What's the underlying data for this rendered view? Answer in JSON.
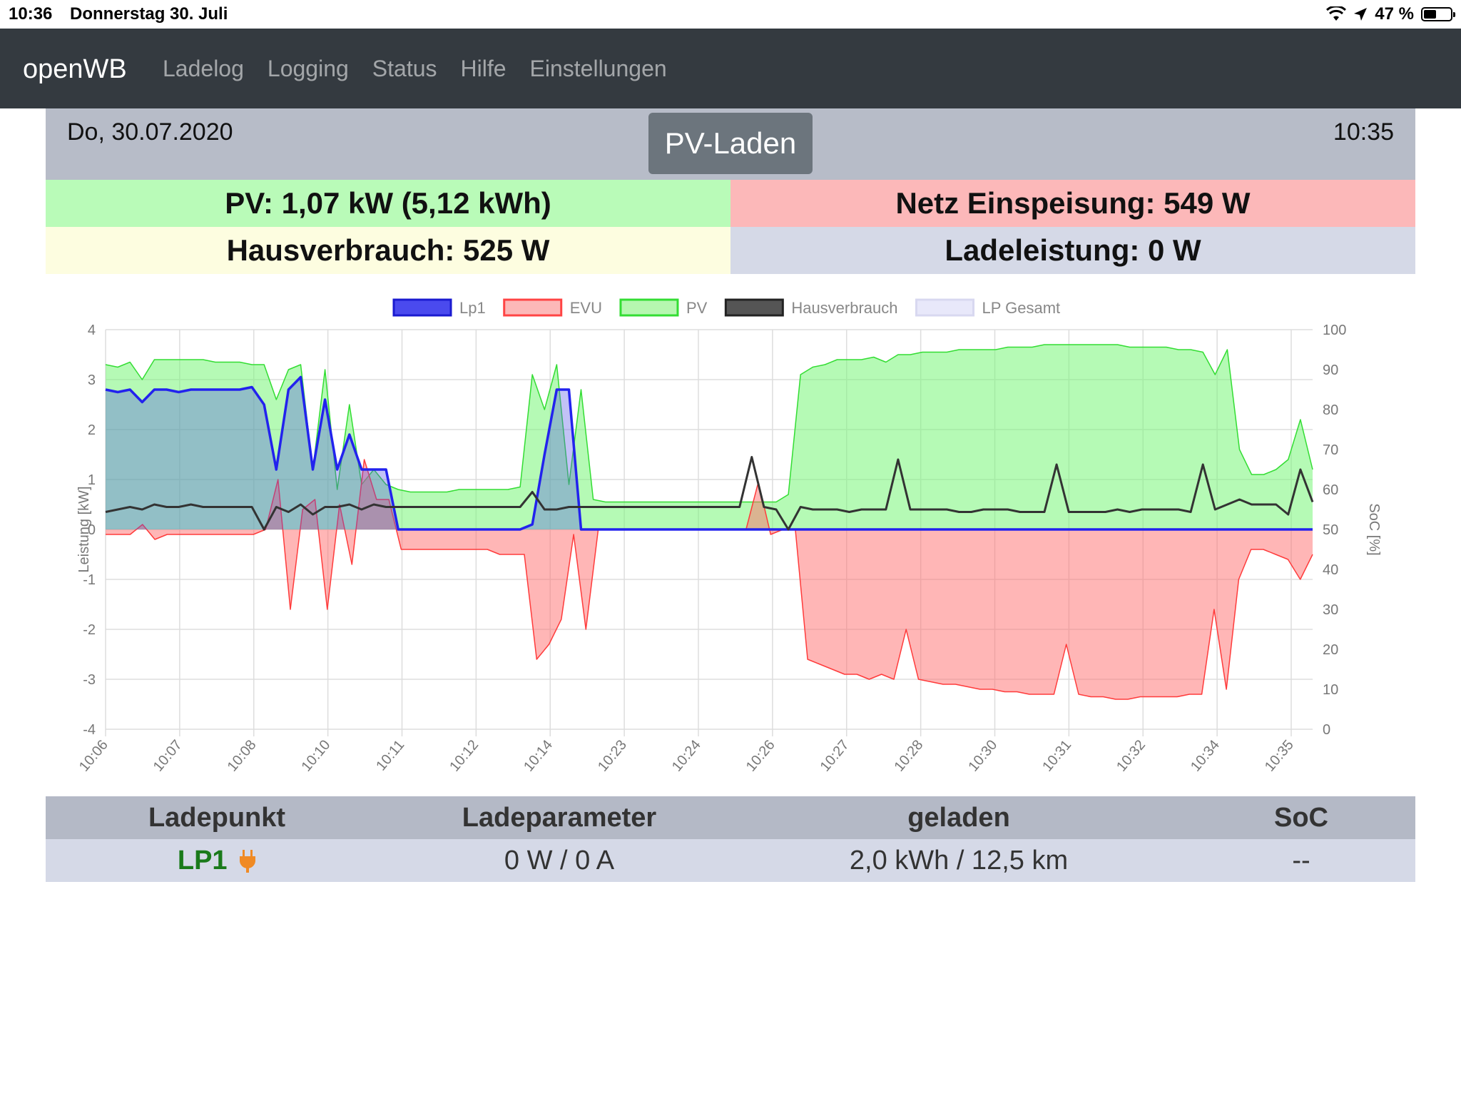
{
  "status_bar": {
    "time": "10:36",
    "date": "Donnerstag 30. Juli",
    "battery": "47 %",
    "battery_level": 0.47,
    "icons": [
      "wifi-icon",
      "location-arrow-icon",
      "battery-icon"
    ]
  },
  "navbar": {
    "brand": "openWB",
    "links": [
      "Ladelog",
      "Logging",
      "Status",
      "Hilfe",
      "Einstellungen"
    ]
  },
  "header": {
    "date": "Do, 30.07.2020",
    "time": "10:35",
    "mode_button": "PV-Laden"
  },
  "summary": {
    "pv": "PV: 1,07 kW (5,12 kWh)",
    "netz": "Netz Einspeisung: 549 W",
    "haus": "Hausverbrauch: 525 W",
    "lade": "Ladeleistung: 0 W"
  },
  "chart_data": {
    "type": "line",
    "legend": [
      {
        "name": "Lp1",
        "color": "#2222ee"
      },
      {
        "name": "EVU",
        "color": "#ff3b3b"
      },
      {
        "name": "PV",
        "color": "#33dd33"
      },
      {
        "name": "Hausverbrauch",
        "color": "#333333"
      },
      {
        "name": "LP Gesamt",
        "color": "#d8d8f8"
      }
    ],
    "legend_position": "top",
    "ylabel_left": "Leistung [kW]",
    "ylabel_right": "SoC [%]",
    "ylim_left": [
      -4,
      4
    ],
    "ylim_right": [
      0,
      100
    ],
    "yticks_left": [
      "4",
      "3",
      "2",
      "1",
      "0",
      "-1",
      "-2",
      "-3",
      "-4"
    ],
    "yticks_right": [
      "100",
      "90",
      "80",
      "70",
      "60",
      "50",
      "40",
      "30",
      "20",
      "10",
      "0"
    ],
    "xticks": [
      "10:06",
      "10:07",
      "10:08",
      "10:10",
      "10:11",
      "10:12",
      "10:14",
      "10:23",
      "10:24",
      "10:26",
      "10:27",
      "10:28",
      "10:30",
      "10:31",
      "10:32",
      "10:34",
      "10:35"
    ],
    "grid": true,
    "series": [
      {
        "name": "PV",
        "values": [
          3.3,
          3.25,
          3.35,
          3.0,
          3.4,
          3.4,
          3.4,
          3.4,
          3.4,
          3.35,
          3.35,
          3.35,
          3.3,
          3.3,
          2.6,
          3.2,
          3.3,
          1.2,
          3.2,
          0.8,
          2.5,
          0.9,
          1.2,
          0.9,
          0.8,
          0.75,
          0.75,
          0.75,
          0.75,
          0.8,
          0.8,
          0.8,
          0.8,
          0.8,
          0.85,
          3.1,
          2.4,
          3.3,
          0.9,
          2.8,
          0.6,
          0.55,
          0.55,
          0.55,
          0.55,
          0.55,
          0.55,
          0.55,
          0.55,
          0.55,
          0.55,
          0.55,
          0.55,
          0.55,
          0.55,
          0.55,
          0.7,
          3.1,
          3.25,
          3.3,
          3.4,
          3.4,
          3.4,
          3.45,
          3.35,
          3.5,
          3.5,
          3.55,
          3.55,
          3.55,
          3.6,
          3.6,
          3.6,
          3.6,
          3.65,
          3.65,
          3.65,
          3.7,
          3.7,
          3.7,
          3.7,
          3.7,
          3.7,
          3.7,
          3.65,
          3.65,
          3.65,
          3.65,
          3.6,
          3.6,
          3.55,
          3.1,
          3.6,
          1.6,
          1.1,
          1.1,
          1.2,
          1.4,
          2.2,
          1.2
        ]
      },
      {
        "name": "EVU",
        "values": [
          -0.1,
          -0.1,
          -0.1,
          0.1,
          -0.2,
          -0.1,
          -0.1,
          -0.1,
          -0.1,
          -0.1,
          -0.1,
          -0.1,
          -0.1,
          0.0,
          1.0,
          -1.6,
          0.4,
          0.6,
          -1.6,
          0.5,
          -0.7,
          1.4,
          0.6,
          0.6,
          -0.4,
          -0.4,
          -0.4,
          -0.4,
          -0.4,
          -0.4,
          -0.4,
          -0.4,
          -0.5,
          -0.5,
          -0.5,
          -2.6,
          -2.3,
          -1.8,
          -0.1,
          -2.0,
          0.0,
          0.0,
          0.0,
          0.0,
          0.0,
          0.0,
          0.0,
          0.0,
          0.0,
          0.0,
          0.0,
          0.0,
          0.0,
          0.95,
          -0.1,
          0.0,
          0.0,
          -2.6,
          -2.7,
          -2.8,
          -2.9,
          -2.9,
          -3.0,
          -2.9,
          -3.0,
          -2.0,
          -3.0,
          -3.05,
          -3.1,
          -3.1,
          -3.15,
          -3.2,
          -3.2,
          -3.25,
          -3.25,
          -3.3,
          -3.3,
          -3.3,
          -2.3,
          -3.3,
          -3.35,
          -3.35,
          -3.4,
          -3.4,
          -3.35,
          -3.35,
          -3.35,
          -3.35,
          -3.3,
          -3.3,
          -1.6,
          -3.2,
          -1.0,
          -0.4,
          -0.4,
          -0.5,
          -0.6,
          -1.0,
          -0.5
        ]
      },
      {
        "name": "Lp1",
        "values": [
          2.8,
          2.75,
          2.8,
          2.55,
          2.8,
          2.8,
          2.75,
          2.8,
          2.8,
          2.8,
          2.8,
          2.8,
          2.85,
          2.5,
          1.2,
          2.8,
          3.05,
          1.2,
          2.6,
          1.2,
          1.9,
          1.2,
          1.2,
          1.2,
          0.0,
          0.0,
          0.0,
          0.0,
          0.0,
          0.0,
          0.0,
          0.0,
          0.0,
          0.0,
          0.0,
          0.1,
          1.5,
          2.8,
          2.8,
          0.0,
          0.0,
          0.0,
          0.0,
          0.0,
          0.0,
          0.0,
          0.0,
          0.0,
          0.0,
          0.0,
          0.0,
          0.0,
          0.0,
          0.0,
          0.0,
          0.0,
          0.0,
          0.0,
          0.0,
          0.0,
          0.0,
          0.0,
          0.0,
          0.0,
          0.0,
          0.0,
          0.0,
          0.0,
          0.0,
          0.0,
          0.0,
          0.0,
          0.0,
          0.0,
          0.0,
          0.0,
          0.0,
          0.0,
          0.0,
          0.0,
          0.0,
          0.0,
          0.0,
          0.0,
          0.0,
          0.0,
          0.0,
          0.0,
          0.0,
          0.0,
          0.0,
          0.0,
          0.0,
          0.0,
          0.0,
          0.0,
          0.0,
          0.0,
          0.0,
          0.0
        ]
      },
      {
        "name": "Hausverbrauch",
        "values": [
          0.35,
          0.4,
          0.45,
          0.4,
          0.5,
          0.45,
          0.45,
          0.5,
          0.45,
          0.45,
          0.45,
          0.45,
          0.45,
          0.0,
          0.45,
          0.35,
          0.5,
          0.3,
          0.45,
          0.45,
          0.5,
          0.4,
          0.5,
          0.45,
          0.45,
          0.45,
          0.45,
          0.45,
          0.45,
          0.45,
          0.45,
          0.45,
          0.45,
          0.45,
          0.45,
          0.75,
          0.4,
          0.4,
          0.45,
          0.45,
          0.45,
          0.45,
          0.45,
          0.45,
          0.45,
          0.45,
          0.45,
          0.45,
          0.45,
          0.45,
          0.45,
          0.45,
          0.45,
          1.45,
          0.45,
          0.4,
          0.0,
          0.45,
          0.4,
          0.4,
          0.4,
          0.35,
          0.4,
          0.4,
          0.4,
          1.4,
          0.4,
          0.4,
          0.4,
          0.4,
          0.35,
          0.35,
          0.4,
          0.4,
          0.4,
          0.35,
          0.35,
          0.35,
          1.3,
          0.35,
          0.35,
          0.35,
          0.35,
          0.4,
          0.35,
          0.4,
          0.4,
          0.4,
          0.4,
          0.35,
          1.3,
          0.4,
          0.5,
          0.6,
          0.5,
          0.5,
          0.5,
          0.3,
          1.2,
          0.55
        ]
      }
    ]
  },
  "table": {
    "headers": [
      "Ladepunkt",
      "Ladeparameter",
      "geladen",
      "SoC"
    ],
    "rows": [
      {
        "ladepunkt": "LP1",
        "parameter": "0 W / 0 A",
        "geladen": "2,0 kWh / 12,5 km",
        "soc": "--"
      }
    ]
  }
}
